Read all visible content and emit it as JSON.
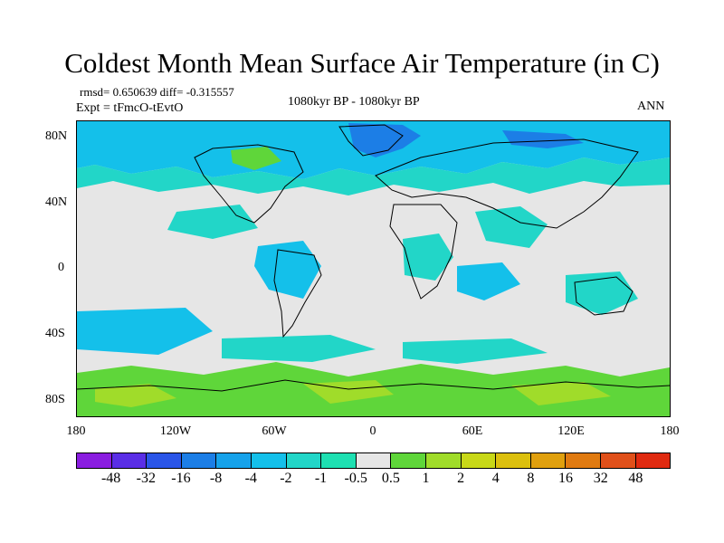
{
  "title": "Coldest Month Mean Surface Air Temperature (in C)",
  "stats_text": "rmsd= 0.650639  diff= -0.315557",
  "experiment_text": "Expt = tFmcO-tEvtO",
  "period_text": "1080kyr BP - 1080kyr BP",
  "season_text": "ANN",
  "map": {
    "projection": "cylindrical-equidistant",
    "lon_range": [
      -180,
      180
    ],
    "lat_range": [
      -90,
      90
    ],
    "background_color": "#e6e6e6",
    "coastline_color": "#000000"
  },
  "lat_ticks": [
    "80N",
    "40N",
    "0",
    "40S",
    "80S"
  ],
  "lon_ticks": [
    "180",
    "120W",
    "60W",
    "0",
    "60E",
    "120E",
    "180"
  ],
  "colorbar": {
    "labels": [
      "-48",
      "-32",
      "-16",
      "-8",
      "-4",
      "-2",
      "-1",
      "-0.5",
      "0.5",
      "1",
      "2",
      "4",
      "8",
      "16",
      "32",
      "48"
    ],
    "colors": [
      "#8a1de0",
      "#5a2ee6",
      "#2a55e8",
      "#1c7ee6",
      "#16a2ea",
      "#14c0ea",
      "#22d6c8",
      "#1ee0b2",
      "#e6e6e6",
      "#5fd63a",
      "#a0dc2a",
      "#c8d818",
      "#dcc00e",
      "#e0a00e",
      "#e07a10",
      "#e0501a",
      "#e02a10"
    ]
  }
}
